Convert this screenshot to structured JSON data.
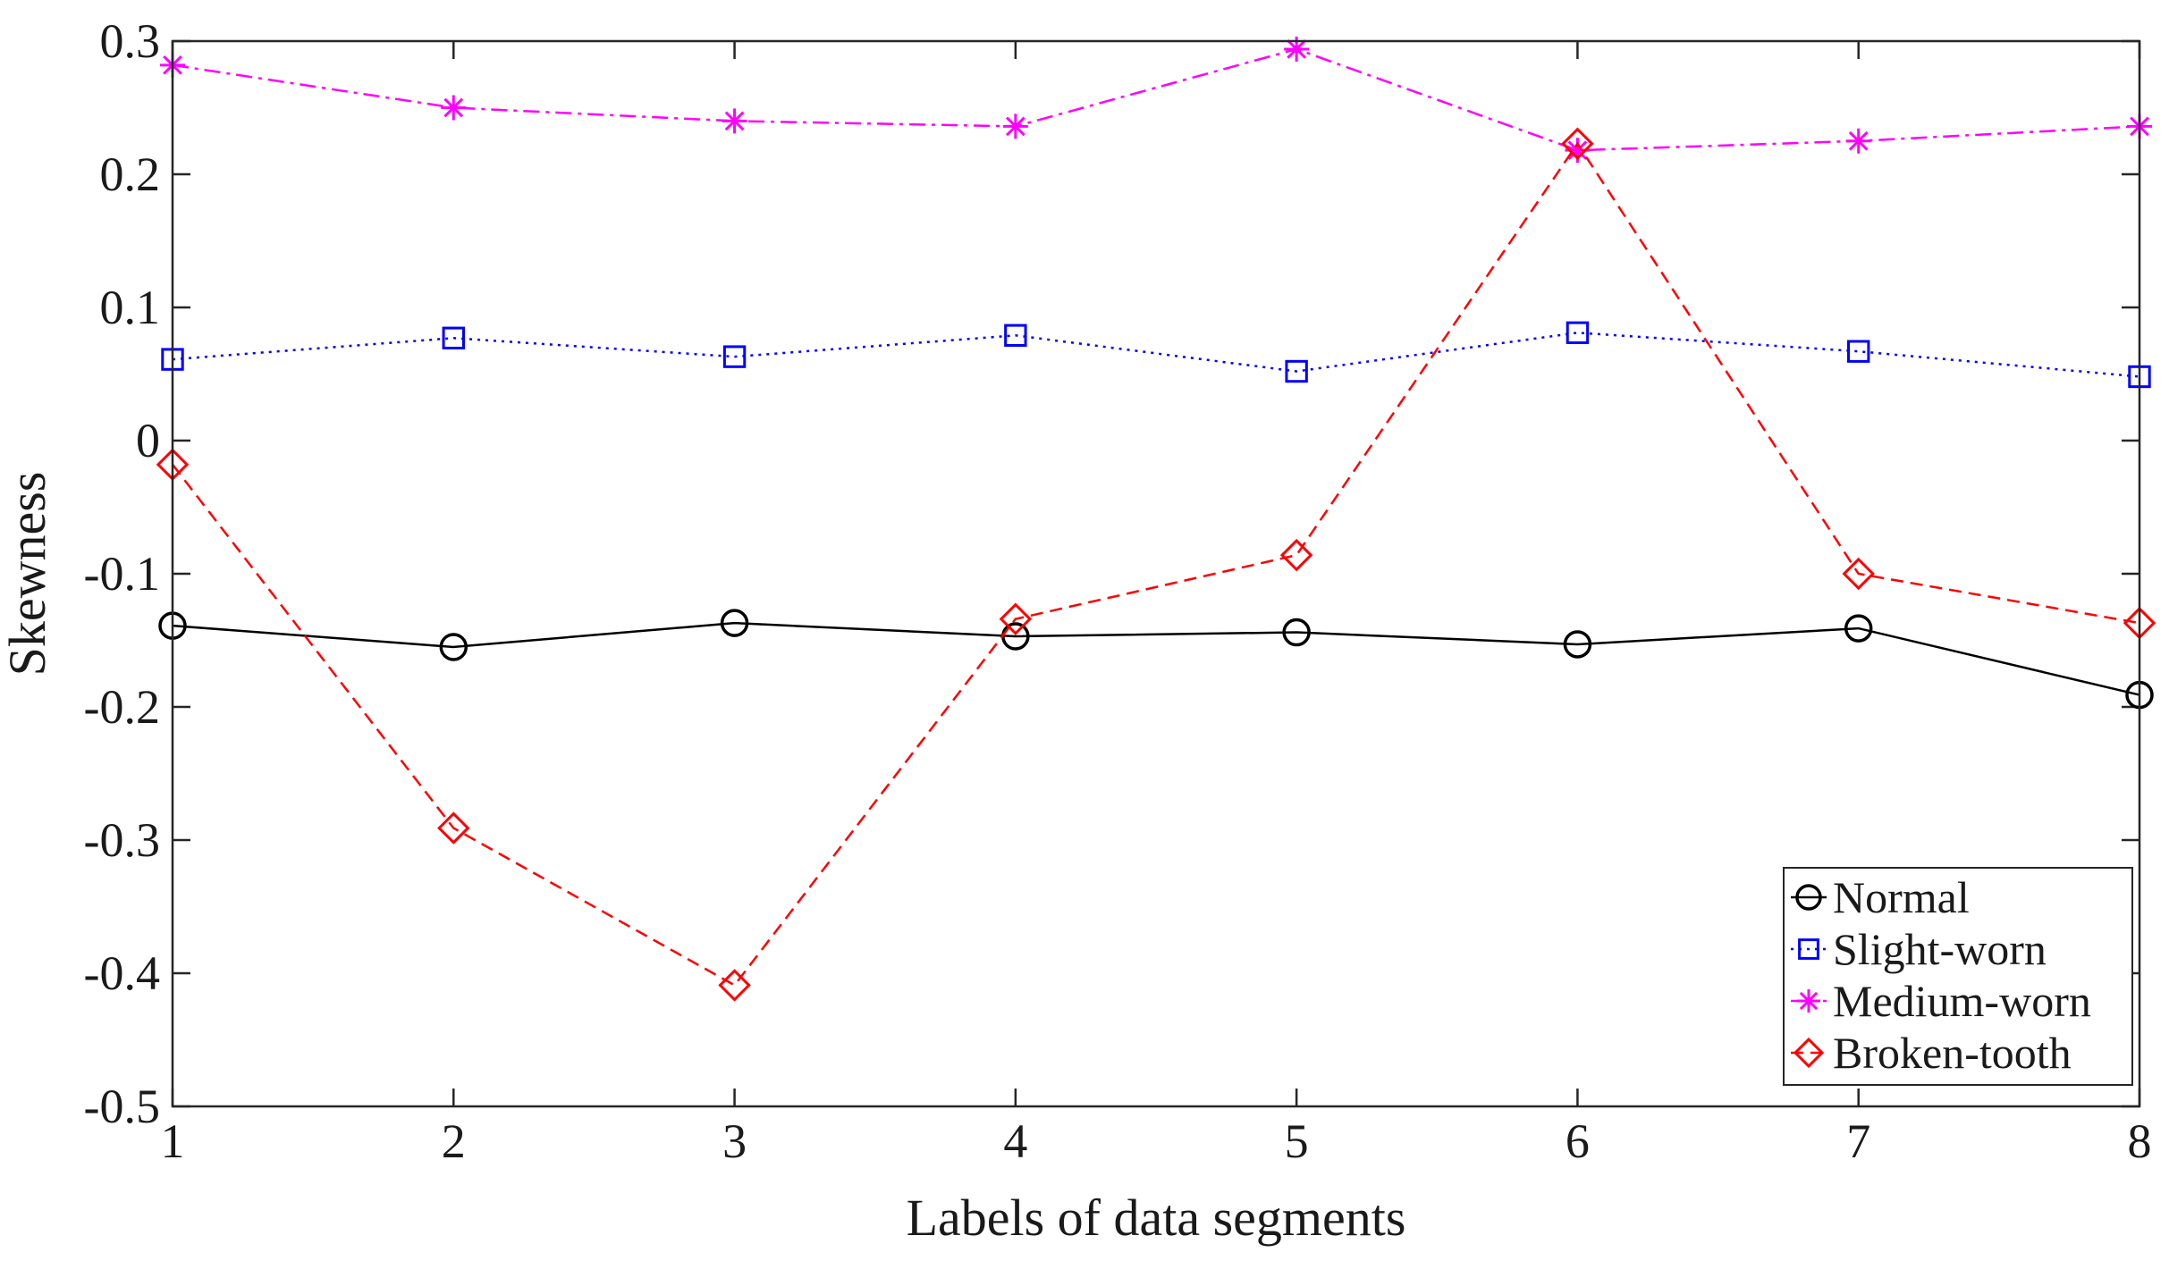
{
  "chart_data": {
    "type": "line",
    "title": "",
    "xlabel": "Labels of data segments",
    "ylabel": "Skewness",
    "x": [
      1,
      2,
      3,
      4,
      5,
      6,
      7,
      8
    ],
    "xlim": [
      1,
      8
    ],
    "ylim": [
      -0.5,
      0.3
    ],
    "xticks": [
      "1",
      "2",
      "3",
      "4",
      "5",
      "6",
      "7",
      "8"
    ],
    "yticks": [
      "0.3",
      "0.2",
      "0.1",
      "0",
      "-0.1",
      "-0.2",
      "-0.3",
      "-0.4",
      "-0.5"
    ],
    "ytick_values": [
      0.3,
      0.2,
      0.1,
      0,
      -0.1,
      -0.2,
      -0.3,
      -0.4,
      -0.5
    ],
    "grid": false,
    "legend_position": "bottom-right",
    "series": [
      {
        "name": "Normal",
        "color": "#000000",
        "marker": "circle",
        "line_style": "solid",
        "values": [
          -0.139,
          -0.155,
          -0.137,
          -0.147,
          -0.144,
          -0.153,
          -0.141,
          -0.191
        ]
      },
      {
        "name": "Slight-worn",
        "color": "#0000ff",
        "marker": "square",
        "line_style": "dotted",
        "values": [
          0.061,
          0.077,
          0.063,
          0.079,
          0.052,
          0.081,
          0.067,
          0.048
        ]
      },
      {
        "name": "Medium-worn",
        "color": "#ff00ff",
        "marker": "asterisk",
        "line_style": "dashdot",
        "values": [
          0.282,
          0.25,
          0.24,
          0.236,
          0.294,
          0.218,
          0.225,
          0.236
        ]
      },
      {
        "name": "Broken-tooth",
        "color": "#ff0000",
        "marker": "diamond",
        "line_style": "dashed",
        "values": [
          -0.018,
          -0.291,
          -0.409,
          -0.134,
          -0.086,
          0.223,
          -0.1,
          -0.137
        ]
      }
    ]
  }
}
